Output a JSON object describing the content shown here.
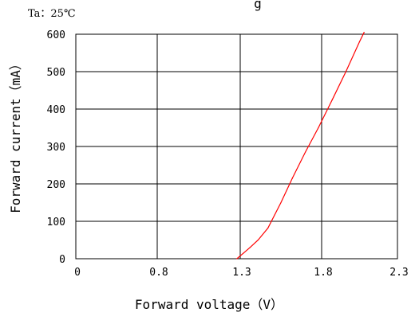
{
  "chart_data": {
    "type": "line",
    "annotation": "Ta：25℃",
    "title_fragment": "g",
    "xlabel": "Forward voltage（V）",
    "ylabel": "Forward current（mA）",
    "x_ticks": [
      "0",
      "0.8",
      "1.3",
      "1.8",
      "2.3"
    ],
    "y_ticks": [
      "0",
      "100",
      "200",
      "300",
      "400",
      "500",
      "600"
    ],
    "ylim": [
      0,
      600
    ],
    "grid": true,
    "series": [
      {
        "color": "#ff0000",
        "points": [
          {
            "x": 1.28,
            "y": 0
          },
          {
            "x": 1.32,
            "y": 15
          },
          {
            "x": 1.36,
            "y": 30
          },
          {
            "x": 1.41,
            "y": 50
          },
          {
            "x": 1.47,
            "y": 82
          },
          {
            "x": 1.55,
            "y": 150
          },
          {
            "x": 1.62,
            "y": 215
          },
          {
            "x": 1.7,
            "y": 285
          },
          {
            "x": 1.78,
            "y": 350
          },
          {
            "x": 1.87,
            "y": 425
          },
          {
            "x": 1.96,
            "y": 500
          },
          {
            "x": 2.05,
            "y": 580
          },
          {
            "x": 2.08,
            "y": 605
          }
        ]
      }
    ]
  }
}
